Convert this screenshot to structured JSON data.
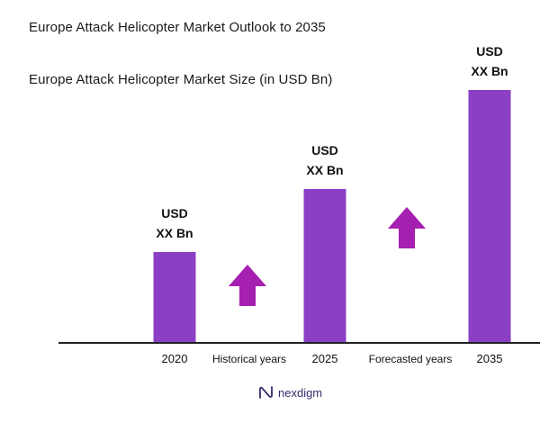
{
  "chart_data": {
    "type": "bar",
    "title": "Europe Attack Helicopter Market Outlook to 2035",
    "subtitle": "Europe Attack Helicopter Market Size (in USD Bn)",
    "categories": [
      "2020",
      "2025",
      "2035"
    ],
    "values": [
      1.0,
      1.7,
      2.8
    ],
    "data_labels": [
      [
        "USD",
        "XX Bn"
      ],
      [
        "USD",
        "XX Bn"
      ],
      [
        "USD",
        "XX Bn"
      ]
    ],
    "period_labels": [
      "Historical years",
      "Forecasted years"
    ],
    "xlabel": "",
    "ylabel": "",
    "ylim": [
      0,
      3.0
    ],
    "grid": false,
    "legend": "none",
    "bar_color": "#8a3fc4",
    "arrow_color": "#a51fb0",
    "axis_color": "#222222"
  },
  "brand": {
    "name": "nexdigm",
    "color": "#3a2a6a"
  }
}
